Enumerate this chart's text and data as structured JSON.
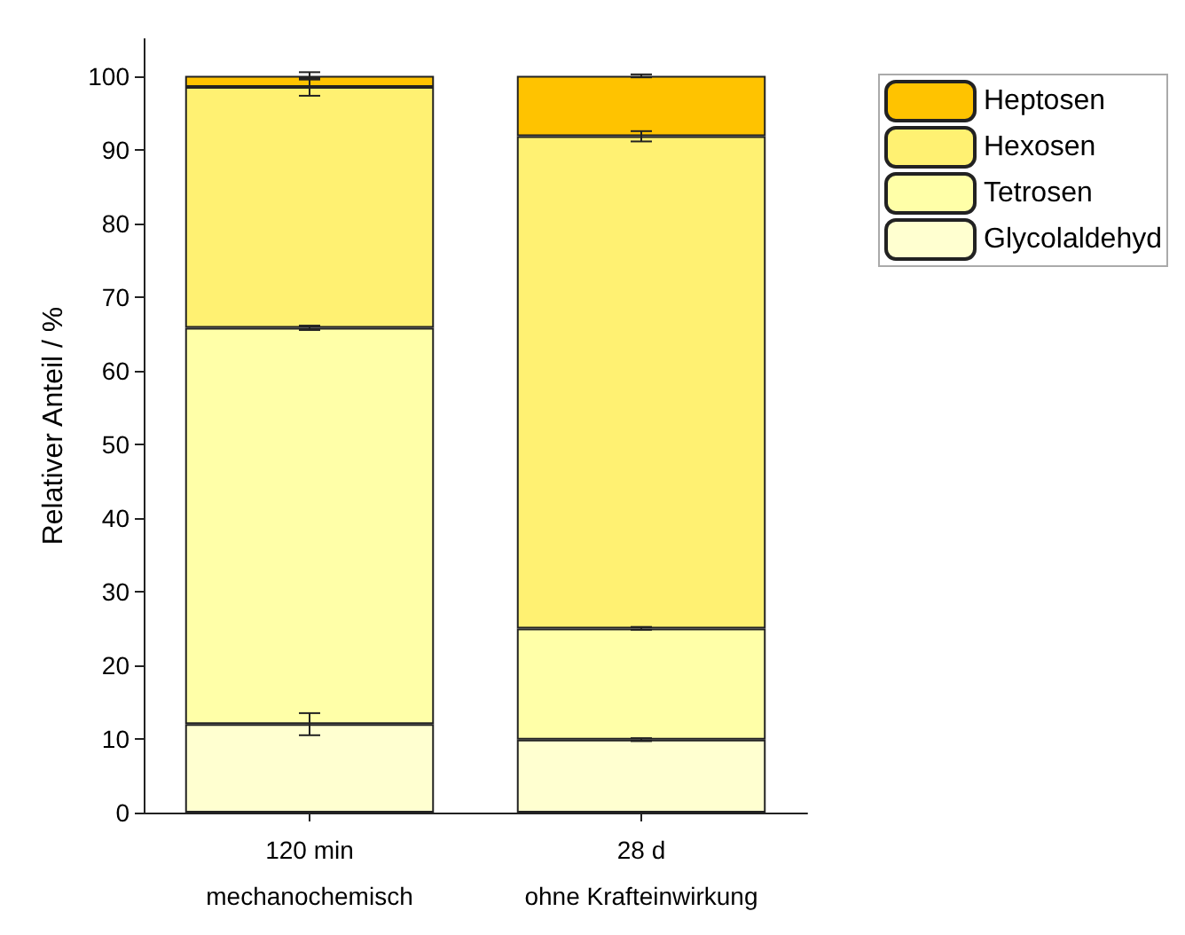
{
  "chart_data": {
    "type": "bar",
    "stacked": true,
    "ylabel": "Relativer Anteil / %",
    "categories": [
      "120 min\nmechanochemisch",
      "28 d\nohne Krafteinwirkung"
    ],
    "series": [
      {
        "name": "Glycolaldehyd",
        "color": "#ffffd0",
        "values": [
          12,
          9.9
        ],
        "errors": [
          1.5,
          0.2
        ]
      },
      {
        "name": "Tetrosen",
        "color": "#ffffa8",
        "values": [
          53.8,
          15.1
        ],
        "errors": [
          0.3,
          0.2
        ]
      },
      {
        "name": "Hexosen",
        "color": "#fff172",
        "values": [
          32.7,
          66.8
        ],
        "errors": [
          1.2,
          0.7
        ]
      },
      {
        "name": "Heptosen",
        "color": "#ffc300",
        "values": [
          1.5,
          8.2
        ],
        "errors": [
          0.5,
          0.2
        ]
      }
    ],
    "ylim": [
      0,
      105
    ],
    "yticks": [
      0,
      10,
      20,
      30,
      40,
      50,
      60,
      70,
      80,
      90,
      100
    ],
    "grid": false,
    "legend": "top right"
  }
}
